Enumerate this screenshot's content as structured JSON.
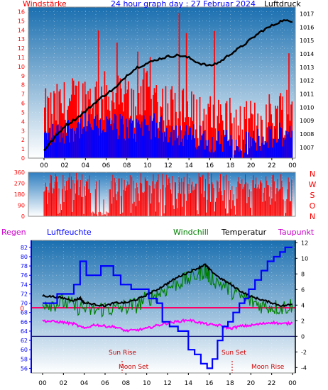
{
  "colors": {
    "background": "#ffffff",
    "panel_top": "#1a6fb0",
    "panel_bottom": "#ffffff",
    "wind_gust": "#ff0000",
    "wind_avg": "#0000ff",
    "pressure": "#000000",
    "direction": "#ff0000",
    "humidity": "#0000ff",
    "windchill": "#008000",
    "temperature": "#000000",
    "dewpoint": "#ff00ff",
    "rain": "#ff0066",
    "axis_red": "#ff0000",
    "axis_black": "#000000",
    "axis_blue": "#0000ff",
    "sun_moon": "#cc0000"
  },
  "chart_data": [
    {
      "type": "bar",
      "id": "wind",
      "title": "24 hour graph day : 27 Februar 2024",
      "left_label": "Windstärke",
      "right_label": "Luftdruck",
      "y_ticks": [
        "0",
        "1",
        "2",
        "3",
        "4",
        "5",
        "6",
        "7",
        "8",
        "9",
        "10",
        "11",
        "12",
        "13",
        "14",
        "15",
        "16"
      ],
      "ylim": [
        0,
        16.5
      ],
      "y2_ticks": [
        "1007",
        "1008",
        "1009",
        "1010",
        "1011",
        "1012",
        "1013",
        "1014",
        "1015",
        "1016",
        "1017"
      ],
      "y2lim": [
        1006.2,
        1017.5
      ],
      "x_ticks": [
        "00",
        "02",
        "04",
        "06",
        "08",
        "10",
        "12",
        "14",
        "16",
        "18",
        "20",
        "22",
        "00"
      ],
      "series": [
        {
          "name": "Windstärke",
          "values_seed": 7,
          "note_max": 16
        },
        {
          "name": "Luftdruck",
          "points": [
            [
              0,
              1006.8
            ],
            [
              1,
              1007.7
            ],
            [
              2,
              1008.6
            ],
            [
              3,
              1009.1
            ],
            [
              4,
              1009.7
            ],
            [
              5,
              1010.4
            ],
            [
              6,
              1011.0
            ],
            [
              7,
              1011.5
            ],
            [
              8,
              1012.4
            ],
            [
              9,
              1013.0
            ],
            [
              10,
              1013.3
            ],
            [
              11,
              1013.6
            ],
            [
              12,
              1013.8
            ],
            [
              13,
              1013.9
            ],
            [
              14,
              1013.7
            ],
            [
              15,
              1013.3
            ],
            [
              16,
              1013.1
            ],
            [
              17,
              1013.4
            ],
            [
              18,
              1014.0
            ],
            [
              19,
              1014.5
            ],
            [
              20,
              1015.1
            ],
            [
              21,
              1015.7
            ],
            [
              22,
              1016.1
            ],
            [
              23,
              1016.5
            ],
            [
              24,
              1016.4
            ]
          ]
        }
      ]
    },
    {
      "type": "bar",
      "id": "direction",
      "y_ticks": [
        "0",
        "90",
        "180",
        "270",
        "360"
      ],
      "ylim": [
        0,
        360
      ],
      "right_letters": [
        "N",
        "W",
        "S",
        "O",
        "N"
      ]
    },
    {
      "type": "line",
      "id": "climate",
      "legend": [
        "Regen",
        "Luftfeuchte",
        "Windchill",
        "Temperatur",
        "Taupunkt"
      ],
      "y_ticks": [
        "56",
        "58",
        "60",
        "62",
        "64",
        "66",
        "68",
        "70",
        "72",
        "74",
        "76",
        "78",
        "80",
        "82"
      ],
      "ylim": [
        55,
        83.5
      ],
      "y2_ticks": [
        "-4",
        "-2",
        "0",
        "2",
        "4",
        "6",
        "8",
        "10",
        "12"
      ],
      "y2lim": [
        -4.7,
        12.3
      ],
      "rain_tick": "0",
      "x_ticks": [
        "00",
        "02",
        "04",
        "06",
        "08",
        "10",
        "12",
        "14",
        "16",
        "18",
        "20",
        "22",
        "00"
      ],
      "annotations": [
        "Sun Rise",
        "Sun Set",
        "Moon Set",
        "Moon Rise"
      ],
      "series": [
        {
          "name": "Luftfeuchte",
          "points": [
            [
              0,
              70
            ],
            [
              1,
              70
            ],
            [
              1.4,
              72
            ],
            [
              2.6,
              72
            ],
            [
              3,
              74
            ],
            [
              3.6,
              79
            ],
            [
              4.2,
              76
            ],
            [
              5,
              76
            ],
            [
              5.6,
              78
            ],
            [
              6.4,
              78
            ],
            [
              6.8,
              76
            ],
            [
              7.5,
              74
            ],
            [
              8.5,
              73
            ],
            [
              9.5,
              73
            ],
            [
              10.2,
              71
            ],
            [
              11,
              70
            ],
            [
              11.5,
              66
            ],
            [
              12.2,
              65
            ],
            [
              13,
              64
            ],
            [
              13.5,
              64
            ],
            [
              14,
              60
            ],
            [
              14.6,
              59
            ],
            [
              15.2,
              57
            ],
            [
              15.8,
              56
            ],
            [
              16.3,
              58
            ],
            [
              16.8,
              62
            ],
            [
              17.3,
              65
            ],
            [
              17.8,
              66
            ],
            [
              18.3,
              68
            ],
            [
              18.9,
              70
            ],
            [
              19.4,
              71
            ],
            [
              19.8,
              73
            ],
            [
              20.4,
              75
            ],
            [
              21,
              77
            ],
            [
              21.6,
              79
            ],
            [
              22.2,
              80
            ],
            [
              22.8,
              81
            ],
            [
              23.3,
              82
            ],
            [
              24,
              82
            ]
          ]
        },
        {
          "name": "Temperatur",
          "points": [
            [
              0,
              5.2
            ],
            [
              1,
              5.1
            ],
            [
              2,
              4.9
            ],
            [
              3,
              4.6
            ],
            [
              3.6,
              4.9
            ],
            [
              4,
              4.3
            ],
            [
              5,
              4.1
            ],
            [
              6,
              3.9
            ],
            [
              7,
              4.3
            ],
            [
              8,
              4.3
            ],
            [
              9,
              4.7
            ],
            [
              10,
              5.3
            ],
            [
              11,
              6.0
            ],
            [
              12,
              6.8
            ],
            [
              13,
              7.6
            ],
            [
              14,
              8.2
            ],
            [
              15,
              8.8
            ],
            [
              15.6,
              9.2
            ],
            [
              16,
              8.6
            ],
            [
              17,
              7.5
            ],
            [
              18,
              6.7
            ],
            [
              19,
              5.8
            ],
            [
              20,
              5.1
            ],
            [
              21,
              4.7
            ],
            [
              22,
              4.3
            ],
            [
              23,
              3.9
            ],
            [
              24,
              4.1
            ]
          ]
        },
        {
          "name": "Windchill",
          "points": [
            [
              0,
              4.5
            ],
            [
              1,
              4.2
            ],
            [
              2,
              4.4
            ],
            [
              3,
              3.9
            ],
            [
              4,
              3.6
            ],
            [
              5,
              3.3
            ],
            [
              6,
              3.6
            ],
            [
              7,
              3.5
            ],
            [
              8,
              3.8
            ],
            [
              9,
              4.0
            ],
            [
              10,
              4.8
            ],
            [
              11,
              5.4
            ],
            [
              12,
              6.2
            ],
            [
              13,
              6.9
            ],
            [
              14,
              7.3
            ],
            [
              15,
              8.1
            ],
            [
              15.6,
              8.4
            ],
            [
              16,
              7.7
            ],
            [
              17,
              6.8
            ],
            [
              18,
              6.0
            ],
            [
              19,
              5.1
            ],
            [
              20,
              4.5
            ],
            [
              21,
              4.0
            ],
            [
              22,
              3.8
            ],
            [
              23,
              3.7
            ],
            [
              24,
              4.0
            ]
          ]
        },
        {
          "name": "Taupunkt",
          "points": [
            [
              0,
              2.0
            ],
            [
              1,
              1.9
            ],
            [
              2,
              1.8
            ],
            [
              3,
              1.6
            ],
            [
              4,
              1.0
            ],
            [
              5,
              1.5
            ],
            [
              6,
              1.3
            ],
            [
              7,
              1.2
            ],
            [
              8,
              0.7
            ],
            [
              9,
              0.8
            ],
            [
              10,
              1.0
            ],
            [
              11,
              1.4
            ],
            [
              12,
              1.7
            ],
            [
              13,
              1.9
            ],
            [
              14,
              2.1
            ],
            [
              15,
              1.8
            ],
            [
              16,
              1.5
            ],
            [
              17,
              1.4
            ],
            [
              18,
              1.0
            ],
            [
              19,
              1.3
            ],
            [
              20,
              1.4
            ],
            [
              21,
              1.6
            ],
            [
              22,
              1.8
            ],
            [
              23,
              1.6
            ],
            [
              24,
              1.7
            ]
          ]
        }
      ]
    }
  ]
}
